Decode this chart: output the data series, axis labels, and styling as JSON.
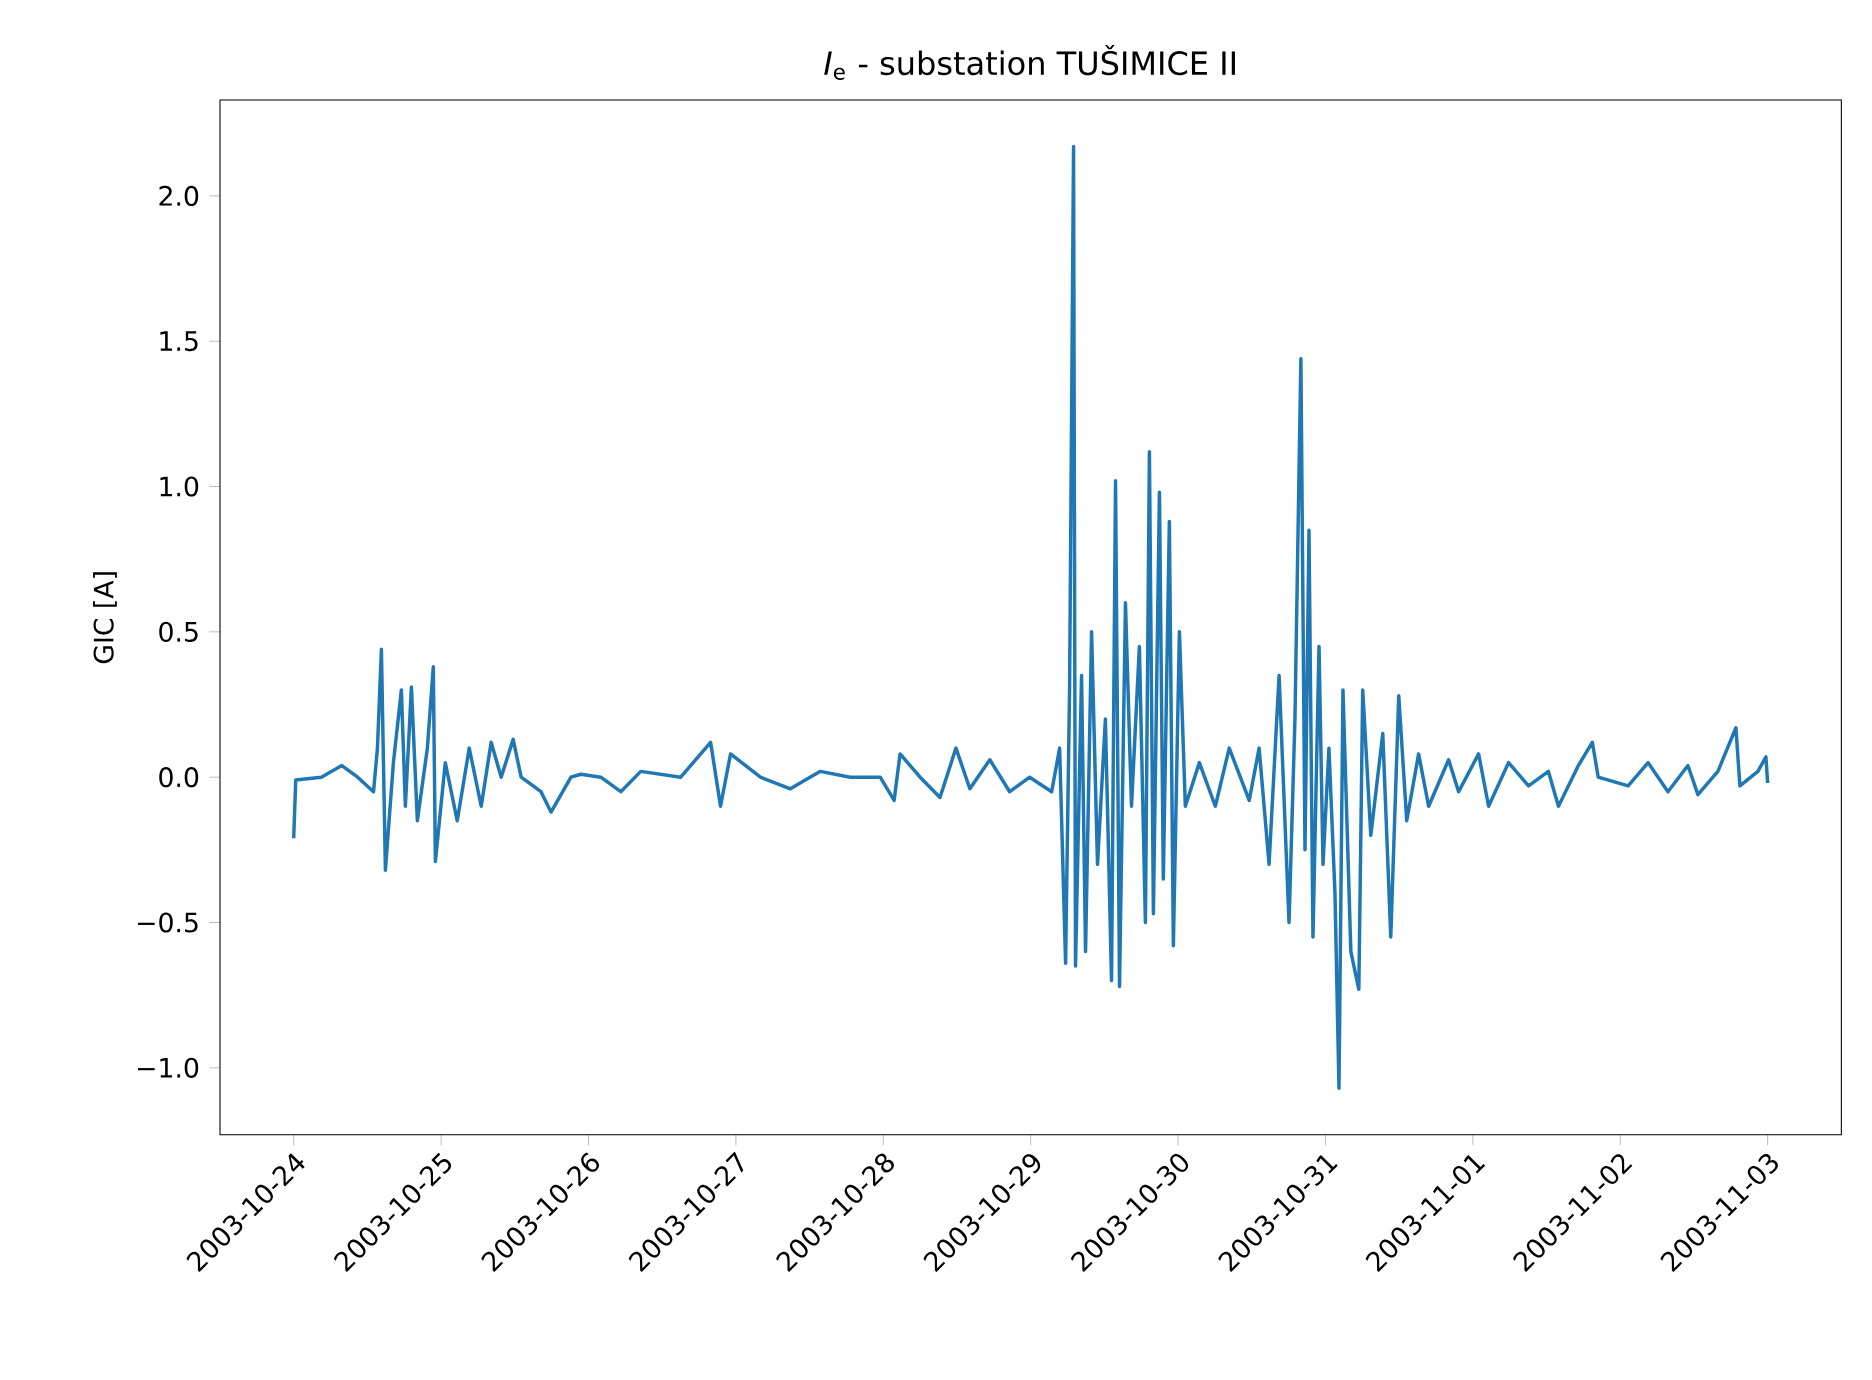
{
  "chart_data": {
    "type": "line",
    "title": "*I*$_{e}$ - substation TUŠIMICE II",
    "ylabel": "GIC [A]",
    "xlim": [
      "2003-10-23T12:00",
      "2003-11-03T12:00"
    ],
    "xticks": [
      "2003-10-24",
      "2003-10-25",
      "2003-10-26",
      "2003-10-27",
      "2003-10-28",
      "2003-10-29",
      "2003-10-30",
      "2003-10-31",
      "2003-11-01",
      "2003-11-02",
      "2003-11-03"
    ],
    "ylim": [
      -1.23,
      2.33
    ],
    "yticks": [
      {
        "value": -1.0,
        "label": "−1.0"
      },
      {
        "value": -0.5,
        "label": "−0.5"
      },
      {
        "value": 0.0,
        "label": "0.0"
      },
      {
        "value": 0.5,
        "label": "0.5"
      },
      {
        "value": 1.0,
        "label": "1.0"
      },
      {
        "value": 1.5,
        "label": "1.5"
      },
      {
        "value": 2.0,
        "label": "2.0"
      }
    ],
    "series": [
      {
        "color": "#1f77b4",
        "x": [
          "2003-10-24T00:00",
          "2003-10-24T00:20",
          "2003-10-24T04:30",
          "2003-10-24T07:50",
          "2003-10-24T10:25",
          "2003-10-24T13:00",
          "2003-10-24T13:38",
          "2003-10-24T14:17",
          "2003-10-24T14:56",
          "2003-10-24T16:14",
          "2003-10-24T17:32",
          "2003-10-24T18:11",
          "2003-10-24T19:10",
          "2003-10-24T20:08",
          "2003-10-24T21:46",
          "2003-10-24T22:44",
          "2003-10-24T23:04",
          "2003-10-25T00:41",
          "2003-10-25T02:38",
          "2003-10-25T04:35",
          "2003-10-25T06:32",
          "2003-10-25T08:09",
          "2003-10-25T09:47",
          "2003-10-25T11:44",
          "2003-10-25T13:02",
          "2003-10-25T16:16",
          "2003-10-25T17:54",
          "2003-10-25T21:09",
          "2003-10-25T22:46",
          "2003-10-26T02:00",
          "2003-10-26T05:16",
          "2003-10-26T08:31",
          "2003-10-26T15:01",
          "2003-10-26T19:53",
          "2003-10-26T21:30",
          "2003-10-26T23:08",
          "2003-10-27T04:00",
          "2003-10-27T08:52",
          "2003-10-27T13:45",
          "2003-10-27T18:37",
          "2003-10-27T23:30",
          "2003-10-28T01:46",
          "2003-10-28T02:44",
          "2003-10-28T06:00",
          "2003-10-28T09:14",
          "2003-10-28T11:50",
          "2003-10-28T14:06",
          "2003-10-28T17:21",
          "2003-10-28T20:35",
          "2003-10-28T23:50",
          "2003-10-29T03:25",
          "2003-10-29T04:43",
          "2003-10-29T05:41",
          "2003-10-29T06:20",
          "2003-10-29T06:59",
          "2003-10-29T07:18",
          "2003-10-29T08:17",
          "2003-10-29T08:56",
          "2003-10-29T09:55",
          "2003-10-29T10:53",
          "2003-10-29T12:10",
          "2003-10-29T13:10",
          "2003-10-29T13:49",
          "2003-10-29T14:28",
          "2003-10-29T15:26",
          "2003-10-29T16:25",
          "2003-10-29T17:42",
          "2003-10-29T18:41",
          "2003-10-29T19:20",
          "2003-10-29T19:59",
          "2003-10-29T20:58",
          "2003-10-29T21:36",
          "2003-10-29T22:35",
          "2003-10-29T23:14",
          "2003-10-30T00:13",
          "2003-10-30T01:11",
          "2003-10-30T03:28",
          "2003-10-30T06:04",
          "2003-10-30T08:20",
          "2003-10-30T11:35",
          "2003-10-30T13:12",
          "2003-10-30T14:49",
          "2003-10-30T16:27",
          "2003-10-30T18:04",
          "2003-10-30T19:02",
          "2003-10-30T20:00",
          "2003-10-30T20:40",
          "2003-10-30T21:19",
          "2003-10-30T21:58",
          "2003-10-30T22:57",
          "2003-10-30T23:36",
          "2003-10-31T00:34",
          "2003-10-31T01:33",
          "2003-10-31T02:12",
          "2003-10-31T02:51",
          "2003-10-31T04:08",
          "2003-10-31T05:26",
          "2003-10-31T06:04",
          "2003-10-31T07:23",
          "2003-10-31T09:20",
          "2003-10-31T10:38",
          "2003-10-31T11:56",
          "2003-10-31T13:14",
          "2003-10-31T15:10",
          "2003-10-31T16:48",
          "2003-10-31T20:03",
          "2003-10-31T21:41",
          "2003-11-01T00:56",
          "2003-11-01T02:34",
          "2003-11-01T05:49",
          "2003-11-01T09:04",
          "2003-11-01T12:18",
          "2003-11-01T13:56",
          "2003-11-01T17:11",
          "2003-11-01T19:27",
          "2003-11-01T20:25",
          "2003-11-02T01:17",
          "2003-11-02T04:32",
          "2003-11-02T07:46",
          "2003-11-02T11:01",
          "2003-11-02T12:39",
          "2003-11-02T15:54",
          "2003-11-02T18:50",
          "2003-11-02T19:29",
          "2003-11-02T22:25",
          "2003-11-02T23:43",
          "2003-11-03T00:00"
        ],
        "values": [
          -0.21,
          -0.01,
          0.0,
          0.04,
          0.0,
          -0.05,
          0.1,
          0.44,
          -0.32,
          0.05,
          0.3,
          -0.1,
          0.31,
          -0.15,
          0.1,
          0.38,
          -0.29,
          0.05,
          -0.15,
          0.1,
          -0.1,
          0.12,
          0.0,
          0.13,
          0.0,
          -0.05,
          -0.12,
          0.0,
          0.01,
          0.0,
          -0.05,
          0.02,
          0.0,
          0.12,
          -0.1,
          0.08,
          0.0,
          -0.04,
          0.02,
          0.0,
          0.0,
          -0.08,
          0.08,
          0.0,
          -0.07,
          0.1,
          -0.04,
          0.06,
          -0.05,
          0.0,
          -0.05,
          0.1,
          -0.64,
          0.3,
          2.17,
          -0.65,
          0.35,
          -0.6,
          0.5,
          -0.3,
          0.2,
          -0.7,
          1.02,
          -0.72,
          0.6,
          -0.1,
          0.45,
          -0.5,
          1.12,
          -0.47,
          0.98,
          -0.35,
          0.88,
          -0.58,
          0.5,
          -0.1,
          0.05,
          -0.1,
          0.1,
          -0.08,
          0.1,
          -0.3,
          0.35,
          -0.5,
          0.2,
          1.44,
          -0.25,
          0.85,
          -0.55,
          0.45,
          -0.3,
          0.1,
          -0.4,
          -1.07,
          0.3,
          -0.6,
          -0.73,
          0.3,
          -0.2,
          0.15,
          -0.55,
          0.28,
          -0.15,
          0.08,
          -0.1,
          0.06,
          -0.05,
          0.08,
          -0.1,
          0.05,
          -0.03,
          0.02,
          -0.1,
          0.04,
          0.12,
          0.0,
          -0.03,
          0.05,
          -0.05,
          0.04,
          -0.06,
          0.02,
          0.17,
          -0.03,
          0.02,
          0.07,
          -0.02
        ]
      }
    ]
  }
}
